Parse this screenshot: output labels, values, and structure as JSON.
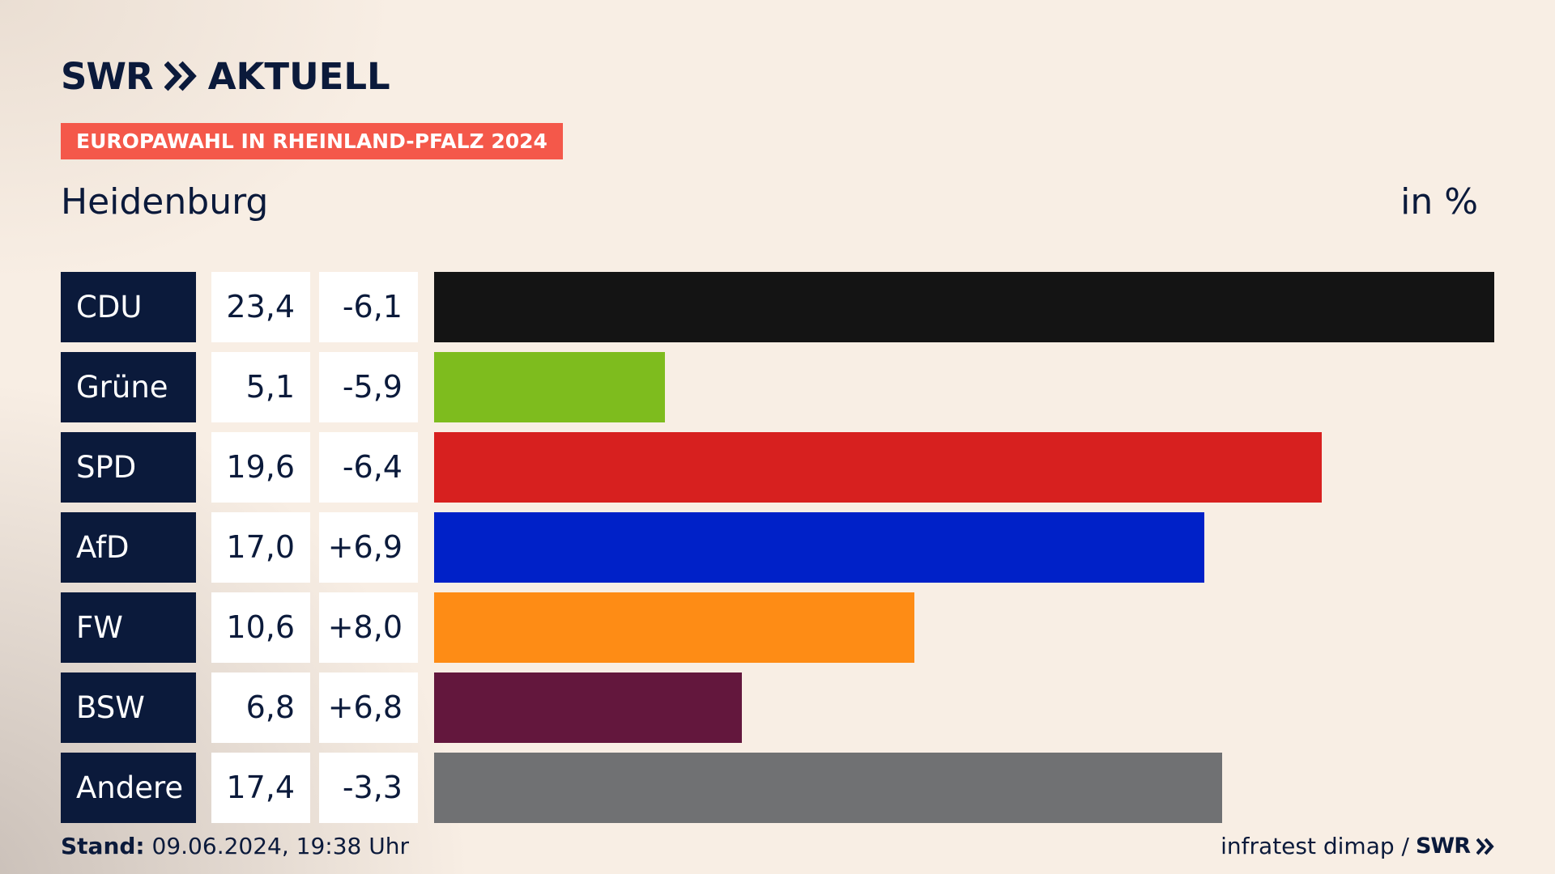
{
  "header": {
    "brand": "SWR",
    "product": "AKTUELL",
    "badge": "EUROPAWAHL IN RHEINLAND-PFALZ 2024",
    "region": "Heidenburg",
    "unit": "in %"
  },
  "chart_data": {
    "type": "bar",
    "orientation": "horizontal",
    "categories": [
      "CDU",
      "Grüne",
      "SPD",
      "AfD",
      "FW",
      "BSW",
      "Andere"
    ],
    "values": [
      23.4,
      5.1,
      19.6,
      17.0,
      10.6,
      6.8,
      17.4
    ],
    "value_labels": [
      "23,4",
      "5,1",
      "19,6",
      "17,0",
      "10,6",
      "6,8",
      "17,4"
    ],
    "diff_labels": [
      "-6,1",
      "-5,9",
      "-6,4",
      "+6,9",
      "+8,0",
      "+6,8",
      "-3,3"
    ],
    "colors": [
      "#141414",
      "#7ebc1e",
      "#d7201f",
      "#0021c8",
      "#fe8c15",
      "#63173d",
      "#707173"
    ],
    "xlim": [
      0,
      23.4
    ],
    "grid": false,
    "legend": "none"
  },
  "colors": {
    "navy": "#0b1a3b",
    "badge": "#f4584a"
  },
  "footer": {
    "stand_label": "Stand:",
    "stand_value": "09.06.2024, 19:38 Uhr",
    "source": "infratest dimap /",
    "source_brand": "SWR"
  }
}
